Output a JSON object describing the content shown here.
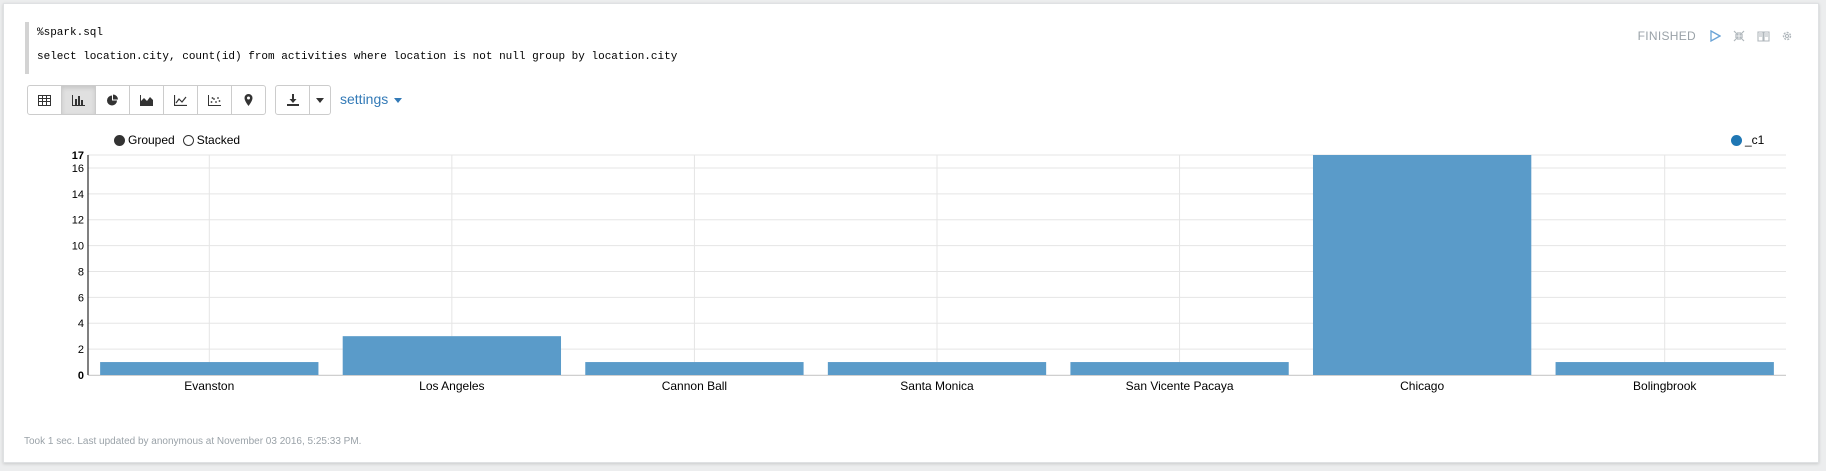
{
  "editor": {
    "line1": "%spark.sql",
    "line2": "select location.city, count(id) from activities where location is not null group by location.city"
  },
  "status": {
    "label": "FINISHED",
    "icons": [
      "play-icon",
      "collapse-icon",
      "book-icon",
      "gear-icon"
    ]
  },
  "toolbar": {
    "buttons": [
      "table-icon",
      "bar-chart-icon",
      "pie-chart-icon",
      "area-chart-icon",
      "line-chart-icon",
      "scatter-chart-icon",
      "map-pin-icon"
    ],
    "active": "bar-chart-icon",
    "settings_label": "settings"
  },
  "legend": {
    "grouped": "Grouped",
    "stacked": "Stacked",
    "series": "_c1"
  },
  "colors": {
    "bar": "#5a9bc9",
    "legend_dot": "#1f77b4",
    "link": "#337ab7"
  },
  "chart_data": {
    "type": "bar",
    "categories": [
      "Evanston",
      "Los Angeles",
      "Cannon Ball",
      "Santa Monica",
      "San Vicente Pacaya",
      "Chicago",
      "Bolingbrook"
    ],
    "series": [
      {
        "name": "_c1",
        "values": [
          1,
          3,
          1,
          1,
          1,
          17,
          1
        ]
      }
    ],
    "ylim": [
      0,
      17
    ],
    "yticks": [
      0,
      2,
      4,
      6,
      8,
      10,
      12,
      14,
      16,
      17
    ],
    "grid": true,
    "legend_position": "top-right"
  },
  "footer": {
    "text": "Took 1 sec. Last updated by anonymous at November 03 2016, 5:25:33 PM."
  }
}
